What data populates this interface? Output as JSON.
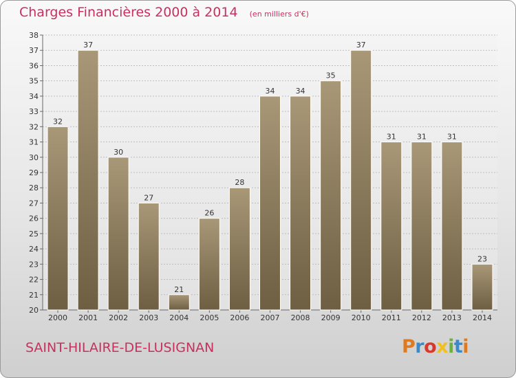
{
  "header": {
    "title": "Charges Financières 2000 à 2014",
    "subtitle": "(en milliers d'€)"
  },
  "footer": {
    "commune": "SAINT-HILAIRE-DE-LUSIGNAN",
    "brand": "Proxiti"
  },
  "colors": {
    "title": "#c8305f",
    "bar_top": "#a89878",
    "bar_bottom": "#6e5e42",
    "grid": "#bdbdbd"
  },
  "chart_data": {
    "type": "bar",
    "title": "Charges Financières 2000 à 2014",
    "subtitle": "(en milliers d'€)",
    "xlabel": "",
    "ylabel": "",
    "categories": [
      "2000",
      "2001",
      "2002",
      "2003",
      "2004",
      "2005",
      "2006",
      "2007",
      "2008",
      "2009",
      "2010",
      "2011",
      "2012",
      "2013",
      "2014"
    ],
    "values": [
      32,
      37,
      30,
      27,
      21,
      26,
      28,
      34,
      34,
      35,
      37,
      31,
      31,
      31,
      23
    ],
    "ylim": [
      20,
      38
    ],
    "yticks": [
      20,
      21,
      22,
      23,
      24,
      25,
      26,
      27,
      28,
      29,
      30,
      31,
      32,
      33,
      34,
      35,
      36,
      37,
      38
    ],
    "grid": true,
    "data_labels": true
  }
}
